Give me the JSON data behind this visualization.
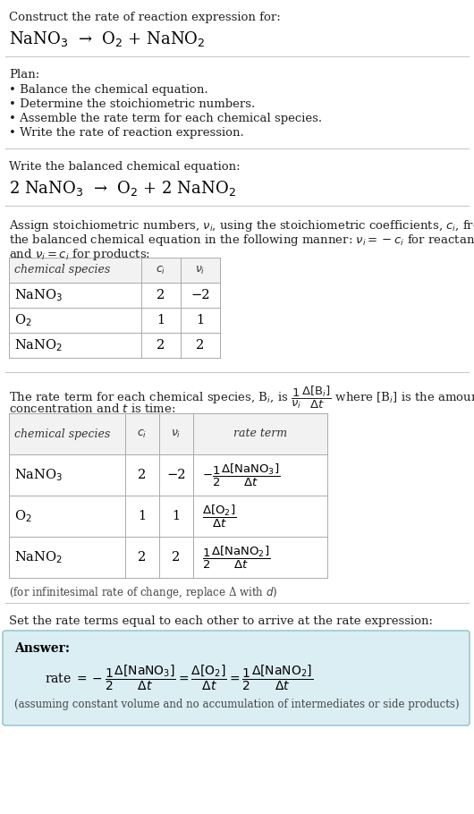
{
  "bg_color": "#ffffff",
  "text_color": "#000000",
  "answer_bg": "#daeef3",
  "answer_border": "#9bc9d4",
  "section1_title": "Construct the rate of reaction expression for:",
  "section1_eq_parts": [
    [
      "NaNO",
      "3"
    ],
    [
      " → ",
      ""
    ],
    [
      "O",
      "2"
    ],
    [
      " + NaNO",
      "2"
    ]
  ],
  "section2_title": "Plan:",
  "section2_bullets": [
    "• Balance the chemical equation.",
    "• Determine the stoichiometric numbers.",
    "• Assemble the rate term for each chemical species.",
    "• Write the rate of reaction expression."
  ],
  "section3_title": "Write the balanced chemical equation:",
  "section3_eq": "2 NaNO$_3$  →  O$_2$ + 2 NaNO$_2$",
  "section4_intro_line1": "Assign stoichiometric numbers, $\\nu_i$, using the stoichiometric coefficients, $c_i$, from",
  "section4_intro_line2": "the balanced chemical equation in the following manner: $\\nu_i = -c_i$ for reactants",
  "section4_intro_line3": "and $\\nu_i = c_i$ for products:",
  "table1_headers": [
    "chemical species",
    "$c_i$",
    "$\\nu_i$"
  ],
  "table1_rows": [
    [
      "NaNO$_3$",
      "2",
      "−2"
    ],
    [
      "O$_2$",
      "1",
      "1"
    ],
    [
      "NaNO$_2$",
      "2",
      "2"
    ]
  ],
  "section5_intro_line1": "The rate term for each chemical species, B$_i$, is $\\dfrac{1}{\\nu_i}\\dfrac{\\Delta[\\mathrm{B}_i]}{\\Delta t}$ where [B$_i$] is the amount",
  "section5_intro_line2": "concentration and $t$ is time:",
  "table2_headers": [
    "chemical species",
    "$c_i$",
    "$\\nu_i$",
    "rate term"
  ],
  "table2_rows": [
    [
      "NaNO$_3$",
      "2",
      "−2",
      "$-\\dfrac{1}{2}\\dfrac{\\Delta[\\mathrm{NaNO_3}]}{\\Delta t}$"
    ],
    [
      "O$_2$",
      "1",
      "1",
      "$\\dfrac{\\Delta[\\mathrm{O_2}]}{\\Delta t}$"
    ],
    [
      "NaNO$_2$",
      "2",
      "2",
      "$\\dfrac{1}{2}\\dfrac{\\Delta[\\mathrm{NaNO_2}]}{\\Delta t}$"
    ]
  ],
  "infinitesimal_note": "(for infinitesimal rate of change, replace Δ with $d$)",
  "section6_title": "Set the rate terms equal to each other to arrive at the rate expression:",
  "answer_label": "Answer:",
  "answer_eq": "rate $= -\\dfrac{1}{2}\\dfrac{\\Delta[\\mathrm{NaNO_3}]}{\\Delta t} = \\dfrac{\\Delta[\\mathrm{O_2}]}{\\Delta t} = \\dfrac{1}{2}\\dfrac{\\Delta[\\mathrm{NaNO_2}]}{\\Delta t}$",
  "answer_note": "(assuming constant volume and no accumulation of intermediates or side products)"
}
